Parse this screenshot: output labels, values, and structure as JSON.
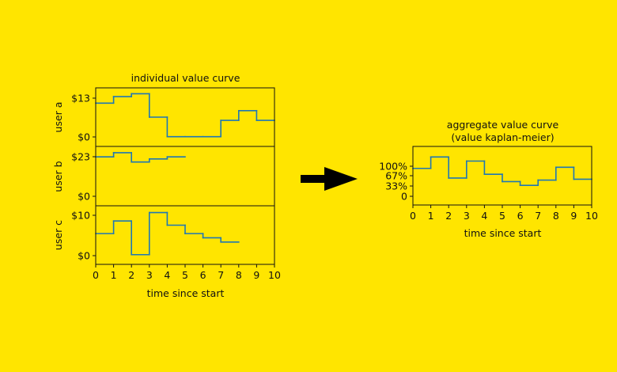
{
  "chart_data": [
    {
      "type": "line",
      "step": "post",
      "title": "individual value curve",
      "xlabel": "time since start",
      "xlim": [
        0,
        10
      ],
      "xticks": [
        0,
        1,
        2,
        3,
        4,
        5,
        6,
        7,
        8,
        9,
        10
      ],
      "color": "#1f77b4",
      "panels": [
        {
          "name": "user a",
          "ylabel": "user a",
          "ylim": [
            -3,
            15
          ],
          "yticks": [
            {
              "value": 0,
              "label": "$0"
            },
            {
              "value": 13,
              "label": "$13"
            }
          ],
          "x": [
            0,
            1,
            2,
            3,
            4,
            5,
            6,
            7,
            8,
            9,
            10
          ],
          "values": [
            10.3,
            12.3,
            13.2,
            6,
            0,
            0,
            0,
            5,
            8,
            5,
            5
          ]
        },
        {
          "name": "user b",
          "ylabel": "user b",
          "ylim": [
            -2.5,
            26
          ],
          "yticks": [
            {
              "value": 0,
              "label": "$0"
            },
            {
              "value": 23,
              "label": "$23"
            }
          ],
          "x": [
            0,
            1,
            2,
            3,
            4,
            5
          ],
          "values": [
            21,
            23,
            18.5,
            20,
            21,
            21
          ]
        },
        {
          "name": "user c",
          "ylabel": "user c",
          "ylim": [
            -2.3,
            11.6
          ],
          "yticks": [
            {
              "value": 0,
              "label": "$0"
            },
            {
              "value": 10,
              "label": "$10"
            }
          ],
          "x": [
            0,
            1,
            2,
            3,
            4,
            5,
            6,
            7,
            8
          ],
          "values": [
            5,
            8,
            0,
            10,
            7,
            5,
            4,
            3,
            3
          ]
        }
      ]
    },
    {
      "type": "line",
      "step": "post",
      "title": "aggregate value curve",
      "subtitle": "(value kaplan-meier)",
      "xlabel": "time since start",
      "xlim": [
        0,
        10
      ],
      "xticks": [
        0,
        1,
        2,
        3,
        4,
        5,
        6,
        7,
        8,
        9,
        10
      ],
      "ylim": [
        -25,
        175
      ],
      "yticks": [
        {
          "value": 0,
          "label": "0"
        },
        {
          "value": 33,
          "label": "33%"
        },
        {
          "value": 67,
          "label": "67%"
        },
        {
          "value": 100,
          "label": "100%"
        }
      ],
      "color": "#1f77b4",
      "x": [
        0,
        1,
        2,
        3,
        4,
        5,
        6,
        7,
        8,
        9,
        10
      ],
      "values": [
        100,
        139,
        67,
        125,
        80,
        55,
        42,
        60,
        104,
        63,
        63
      ]
    }
  ],
  "arrow": {
    "icon": "arrow-right-icon",
    "color": "#000000"
  }
}
